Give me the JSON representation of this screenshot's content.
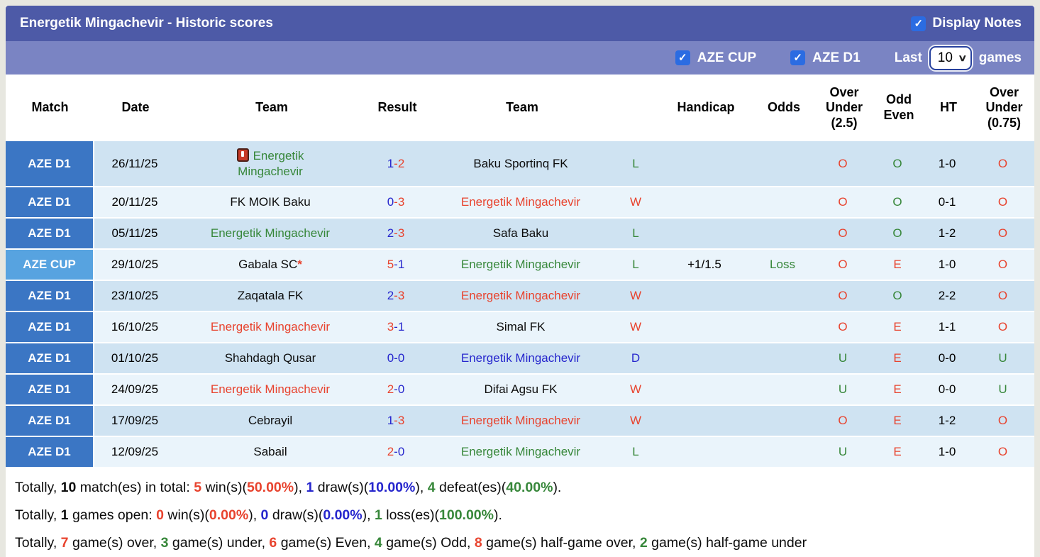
{
  "title_bar": {
    "title": "Energetik Mingachevir - Historic scores",
    "display_notes_label": "Display Notes",
    "display_notes_checked": true
  },
  "filter_bar": {
    "aze_cup_label": "AZE CUP",
    "aze_cup_checked": true,
    "aze_d1_label": "AZE D1",
    "aze_d1_checked": true,
    "last_label": "Last",
    "games_count_value": "10",
    "games_label": "games"
  },
  "colors": {
    "title_bar_bg": "#4d5aa7",
    "filter_bar_bg": "#7a84c3",
    "checkbox_blue": "#2b6ce2",
    "match_d1_bg": "#3b76c4",
    "match_cup_bg": "#57a3e0",
    "row_dark_bg": "#cfe3f2",
    "row_light_bg": "#eaf4fb",
    "win_red": "#e8432e",
    "loss_green": "#37873a",
    "draw_blue": "#2626cd"
  },
  "table": {
    "headers": {
      "match": "Match",
      "date": "Date",
      "team1": "Team",
      "result": "Result",
      "team2": "Team",
      "wdl": "",
      "handicap": "Handicap",
      "odds": "Odds",
      "ou25": "Over\nUnder\n(2.5)",
      "oe": "Odd\nEven",
      "ht": "HT",
      "ou075": "Over\nUnder\n(0.75)"
    },
    "rows": [
      {
        "match": "AZE D1",
        "cup": false,
        "date": "26/11/25",
        "home": {
          "name": "Energetik Mingachevir",
          "color": "green",
          "icon": true,
          "star": false
        },
        "score": {
          "h": "1",
          "a": "2",
          "hc": "blue",
          "ac": "red"
        },
        "away": {
          "name": "Baku Sportinq FK",
          "color": "black"
        },
        "wdl": {
          "t": "L",
          "c": "green"
        },
        "handicap": "",
        "odds": {
          "t": "",
          "c": "green"
        },
        "ou25": {
          "t": "O",
          "c": "red"
        },
        "oe": {
          "t": "O",
          "c": "green"
        },
        "ht": "1-0",
        "ou075": {
          "t": "O",
          "c": "red"
        }
      },
      {
        "match": "AZE D1",
        "cup": false,
        "date": "20/11/25",
        "home": {
          "name": "FK MOIK Baku",
          "color": "black",
          "icon": false,
          "star": false
        },
        "score": {
          "h": "0",
          "a": "3",
          "hc": "blue",
          "ac": "red"
        },
        "away": {
          "name": "Energetik Mingachevir",
          "color": "red"
        },
        "wdl": {
          "t": "W",
          "c": "red"
        },
        "handicap": "",
        "odds": {
          "t": "",
          "c": "green"
        },
        "ou25": {
          "t": "O",
          "c": "red"
        },
        "oe": {
          "t": "O",
          "c": "green"
        },
        "ht": "0-1",
        "ou075": {
          "t": "O",
          "c": "red"
        }
      },
      {
        "match": "AZE D1",
        "cup": false,
        "date": "05/11/25",
        "home": {
          "name": "Energetik Mingachevir",
          "color": "green",
          "icon": false,
          "star": false
        },
        "score": {
          "h": "2",
          "a": "3",
          "hc": "blue",
          "ac": "red"
        },
        "away": {
          "name": "Safa Baku",
          "color": "black"
        },
        "wdl": {
          "t": "L",
          "c": "green"
        },
        "handicap": "",
        "odds": {
          "t": "",
          "c": "green"
        },
        "ou25": {
          "t": "O",
          "c": "red"
        },
        "oe": {
          "t": "O",
          "c": "green"
        },
        "ht": "1-2",
        "ou075": {
          "t": "O",
          "c": "red"
        }
      },
      {
        "match": "AZE CUP",
        "cup": true,
        "date": "29/10/25",
        "home": {
          "name": "Gabala SC",
          "color": "black",
          "icon": false,
          "star": true
        },
        "score": {
          "h": "5",
          "a": "1",
          "hc": "red",
          "ac": "blue"
        },
        "away": {
          "name": "Energetik Mingachevir",
          "color": "green"
        },
        "wdl": {
          "t": "L",
          "c": "green"
        },
        "handicap": "+1/1.5",
        "odds": {
          "t": "Loss",
          "c": "green"
        },
        "ou25": {
          "t": "O",
          "c": "red"
        },
        "oe": {
          "t": "E",
          "c": "red"
        },
        "ht": "1-0",
        "ou075": {
          "t": "O",
          "c": "red"
        }
      },
      {
        "match": "AZE D1",
        "cup": false,
        "date": "23/10/25",
        "home": {
          "name": "Zaqatala FK",
          "color": "black",
          "icon": false,
          "star": false
        },
        "score": {
          "h": "2",
          "a": "3",
          "hc": "blue",
          "ac": "red"
        },
        "away": {
          "name": "Energetik Mingachevir",
          "color": "red"
        },
        "wdl": {
          "t": "W",
          "c": "red"
        },
        "handicap": "",
        "odds": {
          "t": "",
          "c": "green"
        },
        "ou25": {
          "t": "O",
          "c": "red"
        },
        "oe": {
          "t": "O",
          "c": "green"
        },
        "ht": "2-2",
        "ou075": {
          "t": "O",
          "c": "red"
        }
      },
      {
        "match": "AZE D1",
        "cup": false,
        "date": "16/10/25",
        "home": {
          "name": "Energetik Mingachevir",
          "color": "red",
          "icon": false,
          "star": false
        },
        "score": {
          "h": "3",
          "a": "1",
          "hc": "red",
          "ac": "blue"
        },
        "away": {
          "name": "Simal FK",
          "color": "black"
        },
        "wdl": {
          "t": "W",
          "c": "red"
        },
        "handicap": "",
        "odds": {
          "t": "",
          "c": "green"
        },
        "ou25": {
          "t": "O",
          "c": "red"
        },
        "oe": {
          "t": "E",
          "c": "red"
        },
        "ht": "1-1",
        "ou075": {
          "t": "O",
          "c": "red"
        }
      },
      {
        "match": "AZE D1",
        "cup": false,
        "date": "01/10/25",
        "home": {
          "name": "Shahdagh Qusar",
          "color": "black",
          "icon": false,
          "star": false
        },
        "score": {
          "h": "0",
          "a": "0",
          "hc": "blue",
          "ac": "blue"
        },
        "away": {
          "name": "Energetik Mingachevir",
          "color": "blue"
        },
        "wdl": {
          "t": "D",
          "c": "blue"
        },
        "handicap": "",
        "odds": {
          "t": "",
          "c": "green"
        },
        "ou25": {
          "t": "U",
          "c": "green"
        },
        "oe": {
          "t": "E",
          "c": "red"
        },
        "ht": "0-0",
        "ou075": {
          "t": "U",
          "c": "green"
        }
      },
      {
        "match": "AZE D1",
        "cup": false,
        "date": "24/09/25",
        "home": {
          "name": "Energetik Mingachevir",
          "color": "red",
          "icon": false,
          "star": false
        },
        "score": {
          "h": "2",
          "a": "0",
          "hc": "red",
          "ac": "blue"
        },
        "away": {
          "name": "Difai Agsu FK",
          "color": "black"
        },
        "wdl": {
          "t": "W",
          "c": "red"
        },
        "handicap": "",
        "odds": {
          "t": "",
          "c": "green"
        },
        "ou25": {
          "t": "U",
          "c": "green"
        },
        "oe": {
          "t": "E",
          "c": "red"
        },
        "ht": "0-0",
        "ou075": {
          "t": "U",
          "c": "green"
        }
      },
      {
        "match": "AZE D1",
        "cup": false,
        "date": "17/09/25",
        "home": {
          "name": "Cebrayil",
          "color": "black",
          "icon": false,
          "star": false
        },
        "score": {
          "h": "1",
          "a": "3",
          "hc": "blue",
          "ac": "red"
        },
        "away": {
          "name": "Energetik Mingachevir",
          "color": "red"
        },
        "wdl": {
          "t": "W",
          "c": "red"
        },
        "handicap": "",
        "odds": {
          "t": "",
          "c": "green"
        },
        "ou25": {
          "t": "O",
          "c": "red"
        },
        "oe": {
          "t": "E",
          "c": "red"
        },
        "ht": "1-2",
        "ou075": {
          "t": "O",
          "c": "red"
        }
      },
      {
        "match": "AZE D1",
        "cup": false,
        "date": "12/09/25",
        "home": {
          "name": "Sabail",
          "color": "black",
          "icon": false,
          "star": false
        },
        "score": {
          "h": "2",
          "a": "0",
          "hc": "red",
          "ac": "blue"
        },
        "away": {
          "name": "Energetik Mingachevir",
          "color": "green"
        },
        "wdl": {
          "t": "L",
          "c": "green"
        },
        "handicap": "",
        "odds": {
          "t": "",
          "c": "green"
        },
        "ou25": {
          "t": "U",
          "c": "green"
        },
        "oe": {
          "t": "E",
          "c": "red"
        },
        "ht": "1-0",
        "ou075": {
          "t": "O",
          "c": "red"
        }
      }
    ]
  },
  "summary": {
    "lines": [
      [
        {
          "t": "Totally, ",
          "c": "black",
          "b": false
        },
        {
          "t": "10",
          "c": "black",
          "b": true
        },
        {
          "t": " match(es) in total: ",
          "c": "black",
          "b": false
        },
        {
          "t": "5",
          "c": "red",
          "b": true
        },
        {
          "t": " win(s)(",
          "c": "black",
          "b": false
        },
        {
          "t": "50.00%",
          "c": "red",
          "b": true
        },
        {
          "t": "), ",
          "c": "black",
          "b": false
        },
        {
          "t": "1",
          "c": "blue",
          "b": true
        },
        {
          "t": " draw(s)(",
          "c": "black",
          "b": false
        },
        {
          "t": "10.00%",
          "c": "blue",
          "b": true
        },
        {
          "t": "), ",
          "c": "black",
          "b": false
        },
        {
          "t": "4",
          "c": "green",
          "b": true
        },
        {
          "t": " defeat(es)(",
          "c": "black",
          "b": false
        },
        {
          "t": "40.00%",
          "c": "green",
          "b": true
        },
        {
          "t": ").",
          "c": "black",
          "b": false
        }
      ],
      [
        {
          "t": "Totally, ",
          "c": "black",
          "b": false
        },
        {
          "t": "1",
          "c": "black",
          "b": true
        },
        {
          "t": " games open: ",
          "c": "black",
          "b": false
        },
        {
          "t": "0",
          "c": "red",
          "b": true
        },
        {
          "t": " win(s)(",
          "c": "black",
          "b": false
        },
        {
          "t": "0.00%",
          "c": "red",
          "b": true
        },
        {
          "t": "), ",
          "c": "black",
          "b": false
        },
        {
          "t": "0",
          "c": "blue",
          "b": true
        },
        {
          "t": " draw(s)(",
          "c": "black",
          "b": false
        },
        {
          "t": "0.00%",
          "c": "blue",
          "b": true
        },
        {
          "t": "), ",
          "c": "black",
          "b": false
        },
        {
          "t": "1",
          "c": "green",
          "b": true
        },
        {
          "t": " loss(es)(",
          "c": "black",
          "b": false
        },
        {
          "t": "100.00%",
          "c": "green",
          "b": true
        },
        {
          "t": ").",
          "c": "black",
          "b": false
        }
      ],
      [
        {
          "t": "Totally, ",
          "c": "black",
          "b": false
        },
        {
          "t": "7",
          "c": "red",
          "b": true
        },
        {
          "t": " game(s) over, ",
          "c": "black",
          "b": false
        },
        {
          "t": "3",
          "c": "green",
          "b": true
        },
        {
          "t": " game(s) under, ",
          "c": "black",
          "b": false
        },
        {
          "t": "6",
          "c": "red",
          "b": true
        },
        {
          "t": " game(s) Even, ",
          "c": "black",
          "b": false
        },
        {
          "t": "4",
          "c": "green",
          "b": true
        },
        {
          "t": " game(s) Odd, ",
          "c": "black",
          "b": false
        },
        {
          "t": "8",
          "c": "red",
          "b": true
        },
        {
          "t": " game(s) half-game over, ",
          "c": "black",
          "b": false
        },
        {
          "t": "2",
          "c": "green",
          "b": true
        },
        {
          "t": " game(s) half-game under",
          "c": "black",
          "b": false
        }
      ]
    ]
  }
}
